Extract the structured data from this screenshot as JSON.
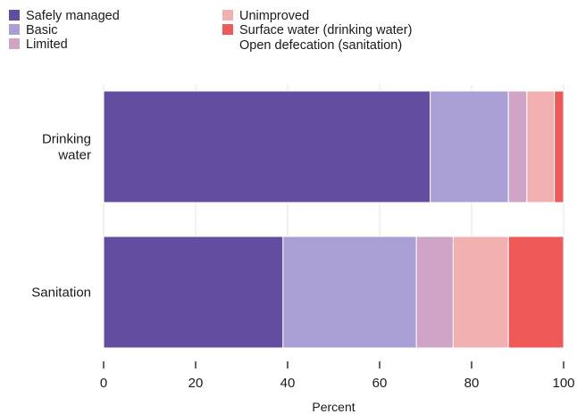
{
  "chart_data": {
    "type": "bar",
    "orientation": "horizontal",
    "stacked": true,
    "categories": [
      "Drinking\nwater",
      "Sanitation"
    ],
    "series": [
      {
        "name": "Safely managed",
        "color": "#634d9e",
        "values": [
          71,
          39
        ]
      },
      {
        "name": "Basic",
        "color": "#a99fd4",
        "values": [
          17,
          29
        ]
      },
      {
        "name": "Limited",
        "color": "#cfa4c6",
        "values": [
          4,
          8
        ]
      },
      {
        "name": "Unimproved",
        "color": "#f2b0b0",
        "values": [
          6,
          12
        ]
      },
      {
        "name": "Surface water (drinking water)\nOpen defecation (sanitation)",
        "color": "#ef5a58",
        "values": [
          2,
          12
        ]
      }
    ],
    "xlabel": "Percent",
    "ylabel": "",
    "xlim": [
      0,
      100
    ],
    "xticks": [
      0,
      20,
      40,
      60,
      80,
      100
    ],
    "grid": true,
    "legend_position": "top"
  }
}
